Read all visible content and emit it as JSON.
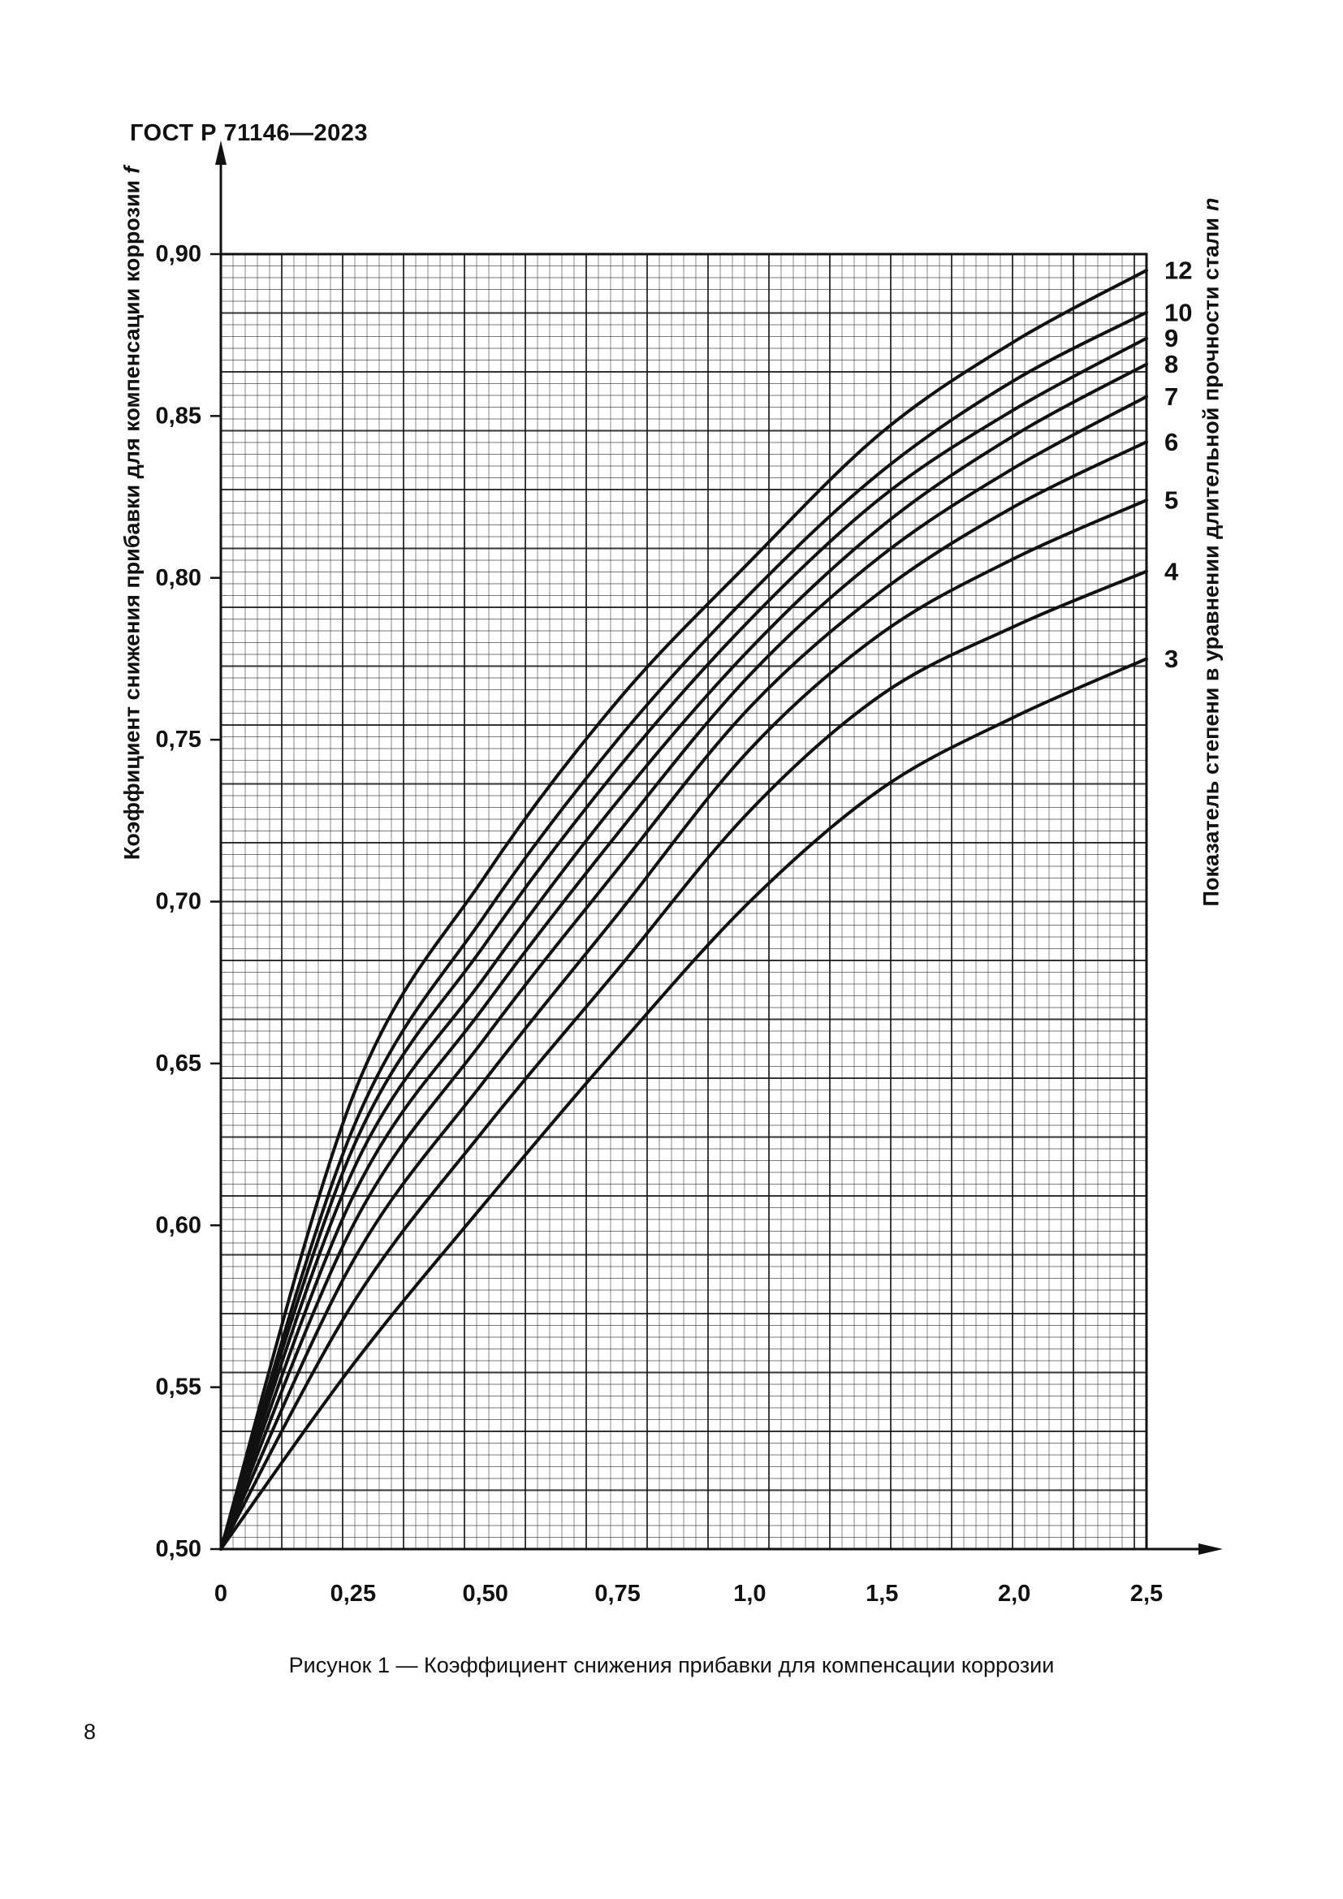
{
  "page": {
    "header_title": "ГОСТ Р 71146—2023",
    "page_number": "8",
    "figure_caption": "Рисунок 1 — Коэффициент снижения прибавки для компенсации коррозии"
  },
  "chart_data": {
    "type": "line",
    "title": "Рисунок 1 — Коэффициент снижения прибавки для компенсации коррозии",
    "xlabel": "",
    "ylabel": "Коэффициент снижения прибавки для компенсации коррозии f",
    "y2label": "Показатель степени в уравнении длительной прочности стали n",
    "axis_titles": {
      "left_main": "Коэффициент снижения прибавки для компенсации коррозии",
      "left_symbol": "f",
      "right_main": "Показатель степени в уравнении длительной прочности стали",
      "right_symbol": "n"
    },
    "x": [
      0,
      0.25,
      0.5,
      0.75,
      1.0,
      1.5,
      2.0,
      2.5
    ],
    "x_tick_labels": [
      "0",
      "0,25",
      "0,50",
      "0,75",
      "1,0",
      "1,5",
      "2,0",
      "2,5"
    ],
    "x_axis_note": "labelled ticks are equally spaced on paper: 0,25 per division up to 1,0 then 0,5 per division to 2,5",
    "xlim": [
      0,
      2.5
    ],
    "y_ticks": [
      0.5,
      0.55,
      0.6,
      0.65,
      0.7,
      0.75,
      0.8,
      0.85,
      0.9
    ],
    "y_tick_labels": [
      "0,50",
      "0,55",
      "0,60",
      "0,65",
      "0,70",
      "0,75",
      "0,80",
      "0,85",
      "0,90"
    ],
    "ylim": [
      0.5,
      0.9
    ],
    "grid": "fine black graph-paper grid with heavier line every 5th cell",
    "legend_position": "curve labels (exponent n) at right edge of plot",
    "series": [
      {
        "name": "12",
        "values": [
          0.5,
          0.64,
          0.708,
          0.762,
          0.805,
          0.845,
          0.873,
          0.895
        ]
      },
      {
        "name": "10",
        "values": [
          0.5,
          0.63,
          0.696,
          0.75,
          0.795,
          0.833,
          0.861,
          0.882
        ]
      },
      {
        "name": "9",
        "values": [
          0.5,
          0.624,
          0.687,
          0.741,
          0.787,
          0.825,
          0.852,
          0.874
        ]
      },
      {
        "name": "8",
        "values": [
          0.5,
          0.617,
          0.677,
          0.731,
          0.778,
          0.816,
          0.844,
          0.866
        ]
      },
      {
        "name": "7",
        "values": [
          0.5,
          0.609,
          0.668,
          0.721,
          0.77,
          0.807,
          0.834,
          0.856
        ]
      },
      {
        "name": "6",
        "values": [
          0.5,
          0.6,
          0.658,
          0.71,
          0.76,
          0.796,
          0.822,
          0.842
        ]
      },
      {
        "name": "5",
        "values": [
          0.5,
          0.589,
          0.645,
          0.696,
          0.747,
          0.783,
          0.806,
          0.824
        ]
      },
      {
        "name": "4",
        "values": [
          0.5,
          0.576,
          0.63,
          0.679,
          0.728,
          0.764,
          0.785,
          0.802
        ]
      },
      {
        "name": "3",
        "values": [
          0.5,
          0.557,
          0.607,
          0.655,
          0.7,
          0.735,
          0.757,
          0.775
        ]
      }
    ],
    "colors": {
      "ink": "#111111",
      "paper": "#ffffff"
    }
  }
}
